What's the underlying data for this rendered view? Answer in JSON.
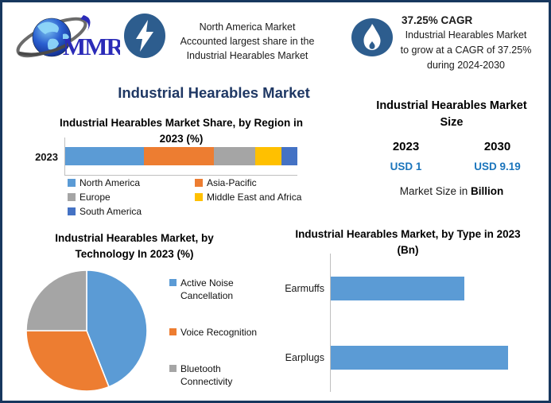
{
  "branding": {
    "logo_text": "MMR"
  },
  "colors": {
    "border_navy": "#17375E",
    "title_navy": "#1F3864",
    "icon_blue": "#2D5D8E",
    "value_blue": "#1B75BC",
    "axis_gray": "#BFBFBF",
    "bar_blue": "#5B9BD5"
  },
  "header": {
    "highlight": {
      "icon": "lightning-icon",
      "lines": [
        "North America Market",
        "Accounted largest share in the",
        "Industrial Hearables Market"
      ]
    },
    "cagr": {
      "icon": "flame-icon",
      "title": "37.25% CAGR",
      "lines": [
        "Industrial Hearables Market",
        "to grow at a CAGR of 37.25%",
        "during 2024-2030"
      ]
    }
  },
  "main_title": "Industrial Hearables Market",
  "market_size": {
    "title": "Industrial Hearables Market Size",
    "columns": [
      {
        "year": "2023",
        "value": "USD 1"
      },
      {
        "year": "2030",
        "value": "USD 9.19"
      }
    ],
    "note_regular": "Market Size in ",
    "note_bold": "Billion"
  },
  "chart_data": [
    {
      "id": "region_share",
      "type": "bar",
      "variant": "stacked-horizontal-100",
      "title": "Industrial Hearables Market Share, by Region in 2023 (%)",
      "categories": [
        "2023"
      ],
      "series": [
        {
          "name": "North America",
          "values": [
            34
          ],
          "color": "#5B9BD5"
        },
        {
          "name": "Asia-Pacific",
          "values": [
            30
          ],
          "color": "#ED7D31"
        },
        {
          "name": "Europe",
          "values": [
            18
          ],
          "color": "#A5A5A5"
        },
        {
          "name": "Middle East and Africa",
          "values": [
            11
          ],
          "color": "#FFC000"
        },
        {
          "name": "South America",
          "values": [
            7
          ],
          "color": "#4472C4"
        }
      ],
      "values_estimated": true,
      "legend_position": "bottom",
      "grid": false
    },
    {
      "id": "technology_share",
      "type": "pie",
      "title": "Industrial Hearables Market, by Technology In 2023 (%)",
      "slices": [
        {
          "label": "Active Noise Cancellation",
          "value": 44,
          "color": "#5B9BD5"
        },
        {
          "label": "Voice Recognition",
          "value": 31,
          "color": "#ED7D31"
        },
        {
          "label": "Bluetooth Connectivity",
          "value": 25,
          "color": "#A5A5A5"
        }
      ],
      "values_estimated": true,
      "legend_position": "right"
    },
    {
      "id": "type_size",
      "type": "bar",
      "variant": "horizontal",
      "title": "Industrial Hearables Market, by Type in 2023 (Bn)",
      "categories": [
        "Earmuffs",
        "Earplugs"
      ],
      "values": [
        0.45,
        0.6
      ],
      "xlim": [
        0,
        0.72
      ],
      "values_estimated": true,
      "grid": false,
      "legend_position": "none"
    }
  ]
}
